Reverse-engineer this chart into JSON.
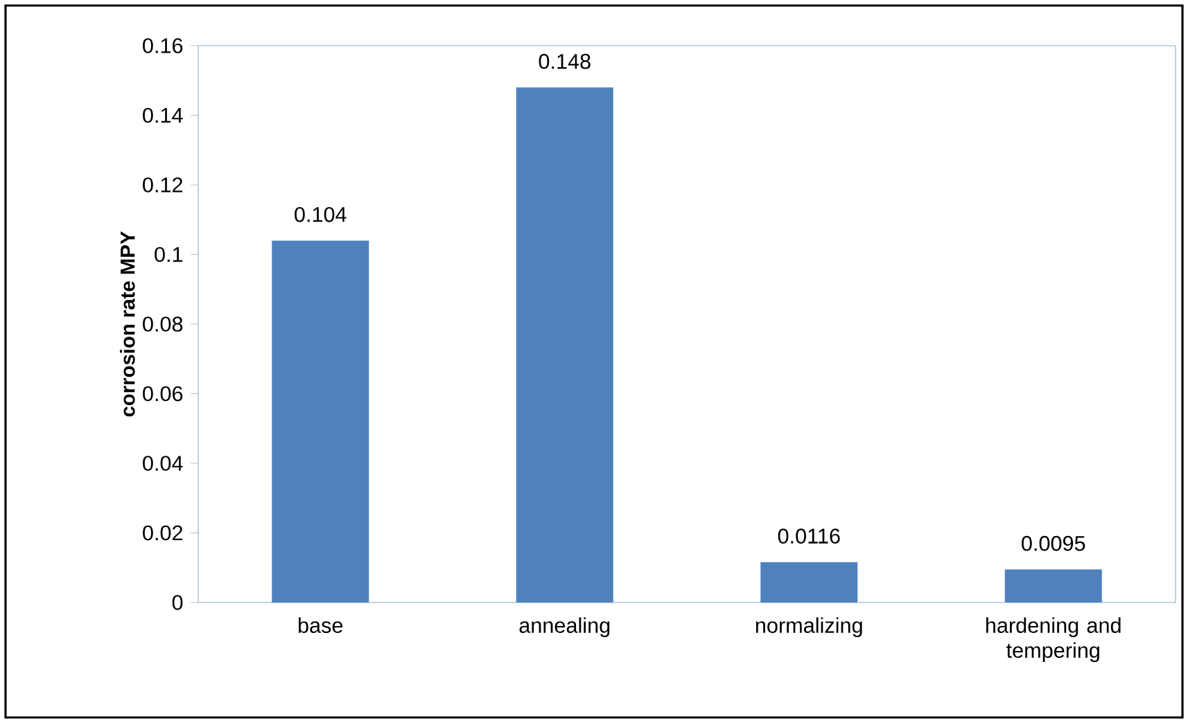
{
  "chart_data": {
    "type": "bar",
    "ylabel": "corrosion rate MPY",
    "categories": [
      "base",
      "annealing",
      "normalizing",
      "hardening and tempering"
    ],
    "values": [
      0.104,
      0.148,
      0.0116,
      0.0095
    ],
    "color": "#4f81bd",
    "ylim": [
      0,
      0.16
    ],
    "yticks": [
      0,
      0.02,
      0.04,
      0.06,
      0.08,
      0.1,
      0.12,
      0.14,
      0.16
    ],
    "data_labels": true
  }
}
